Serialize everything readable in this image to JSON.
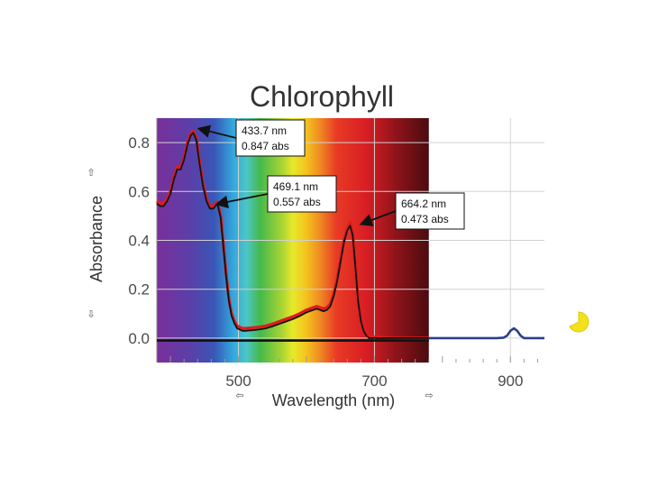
{
  "chart_data": {
    "type": "line",
    "title": "Chlorophyll",
    "xlabel": "Wavelength (nm)",
    "ylabel": "Absorbance",
    "xlim": [
      380,
      950
    ],
    "ylim": [
      -0.1,
      0.9
    ],
    "xticks": [
      500,
      700,
      900
    ],
    "yticks": [
      0.0,
      0.2,
      0.4,
      0.6,
      0.8
    ],
    "ytick_labels": [
      "0.0",
      "0.2",
      "0.4",
      "0.6",
      "0.8"
    ],
    "grid": true,
    "spectrum_band_nm": [
      380,
      780
    ],
    "series": [
      {
        "name": "Absorbance (red)",
        "color": "#e01b1b",
        "x": [
          380,
          385,
          390,
          395,
          400,
          405,
          410,
          415,
          420,
          425,
          430,
          433.7,
          438,
          443,
          448,
          453,
          458,
          463,
          469.1,
          474,
          478,
          482,
          486,
          490,
          494,
          498,
          502,
          506,
          510,
          520,
          530,
          540,
          550,
          560,
          570,
          580,
          590,
          600,
          610,
          615,
          620,
          625,
          630,
          635,
          640,
          645,
          650,
          655,
          660,
          664.2,
          668,
          672,
          676,
          680,
          684,
          688,
          692,
          700,
          720,
          740,
          760,
          780
        ],
        "y": [
          0.56,
          0.55,
          0.55,
          0.57,
          0.6,
          0.66,
          0.7,
          0.7,
          0.74,
          0.8,
          0.84,
          0.847,
          0.82,
          0.72,
          0.63,
          0.57,
          0.54,
          0.54,
          0.557,
          0.5,
          0.38,
          0.26,
          0.16,
          0.1,
          0.07,
          0.05,
          0.045,
          0.04,
          0.04,
          0.042,
          0.045,
          0.05,
          0.058,
          0.068,
          0.078,
          0.088,
          0.1,
          0.115,
          0.125,
          0.13,
          0.125,
          0.12,
          0.125,
          0.14,
          0.18,
          0.24,
          0.32,
          0.4,
          0.45,
          0.473,
          0.43,
          0.3,
          0.16,
          0.08,
          0.04,
          0.02,
          0.01,
          0.005,
          0.0,
          0.0,
          0.0,
          0.0
        ]
      },
      {
        "name": "Absorbance (black)",
        "color": "#111111",
        "x": [
          380,
          385,
          390,
          395,
          400,
          405,
          410,
          415,
          420,
          425,
          430,
          433.7,
          438,
          443,
          448,
          453,
          458,
          463,
          469.1,
          474,
          478,
          482,
          486,
          490,
          494,
          498,
          502,
          506,
          510,
          520,
          530,
          540,
          550,
          560,
          570,
          580,
          590,
          600,
          610,
          615,
          620,
          625,
          630,
          635,
          640,
          645,
          650,
          655,
          660,
          664.2,
          668,
          672,
          676,
          680,
          684,
          688,
          692,
          700,
          720,
          740,
          760,
          780
        ],
        "y": [
          0.55,
          0.54,
          0.54,
          0.56,
          0.59,
          0.65,
          0.69,
          0.69,
          0.73,
          0.79,
          0.83,
          0.84,
          0.81,
          0.71,
          0.62,
          0.56,
          0.53,
          0.53,
          0.55,
          0.49,
          0.37,
          0.25,
          0.15,
          0.09,
          0.06,
          0.04,
          0.035,
          0.03,
          0.03,
          0.032,
          0.035,
          0.04,
          0.048,
          0.058,
          0.068,
          0.078,
          0.09,
          0.105,
          0.115,
          0.12,
          0.115,
          0.11,
          0.115,
          0.13,
          0.17,
          0.23,
          0.31,
          0.39,
          0.44,
          0.46,
          0.42,
          0.29,
          0.15,
          0.07,
          0.03,
          0.01,
          0.0,
          0.0,
          0.0,
          0.0,
          0.0,
          0.0
        ]
      },
      {
        "name": "Baseline (black)",
        "color": "#111111",
        "x": [
          380,
          500,
          600,
          700,
          780
        ],
        "y": [
          -0.01,
          -0.01,
          -0.01,
          -0.01,
          -0.01
        ]
      },
      {
        "name": "Baseline (blue)",
        "color": "#2b3f8f",
        "x": [
          780,
          820,
          860,
          880,
          890,
          895,
          900,
          905,
          910,
          915,
          920,
          930,
          950
        ],
        "y": [
          0.0,
          0.0,
          0.0,
          0.0,
          0.002,
          0.01,
          0.03,
          0.04,
          0.03,
          0.01,
          0.0,
          0.0,
          0.0
        ]
      }
    ],
    "annotations": [
      {
        "line1": "433.7 nm",
        "line2": "0.847 abs",
        "target_x": 433.7,
        "target_y": 0.847
      },
      {
        "line1": "469.1 nm",
        "line2": "0.557 abs",
        "target_x": 469.1,
        "target_y": 0.557
      },
      {
        "line1": "664.2 nm",
        "line2": "0.473 abs",
        "target_x": 664.2,
        "target_y": 0.473
      }
    ]
  },
  "axis_glyphs": {
    "y_up": "⇧",
    "y_down": "⇩",
    "x_left": "⇦",
    "x_right": "⇨"
  }
}
